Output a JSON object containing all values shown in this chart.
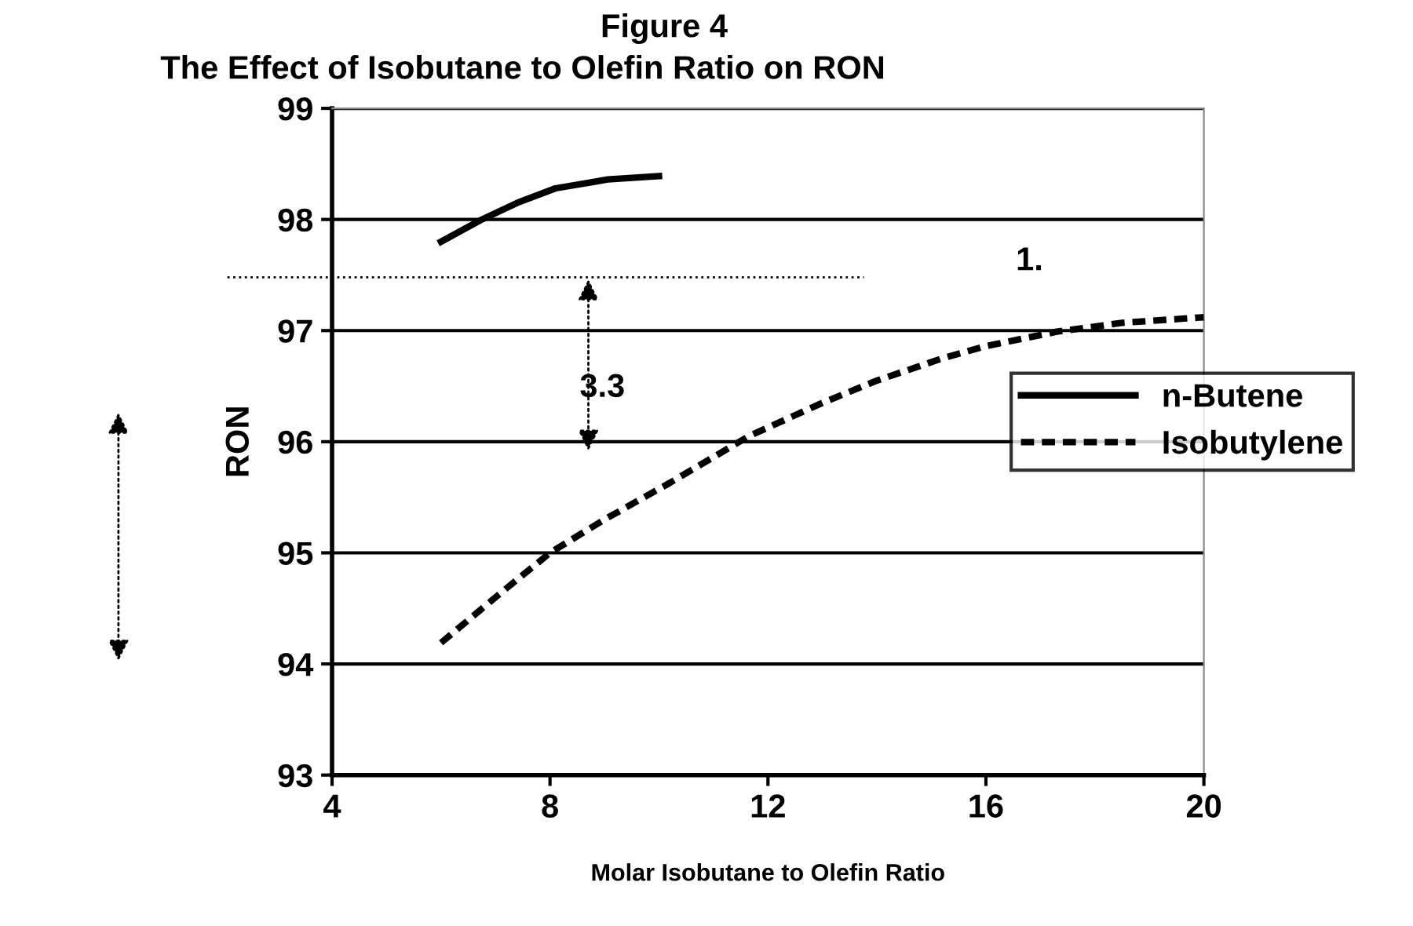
{
  "chart_data": {
    "type": "line",
    "title": "Figure 4",
    "subtitle": "The Effect of Isobutane to Olefin Ratio on RON",
    "xlabel": "Molar Isobutane to Olefin Ratio",
    "ylabel": "RON",
    "series": [
      {
        "name": "n-Butene",
        "color": "#000000",
        "line_style": "solid",
        "x": [
          6,
          6.75,
          7.4,
          8.1,
          9.06,
          10
        ],
        "values": [
          97.8,
          98.0,
          98.15,
          98.28,
          98.36,
          98.39
        ]
      },
      {
        "name": "Isobutylene",
        "color": "#000000",
        "line_style": "dashed",
        "x": [
          6,
          7,
          8,
          9,
          10.2,
          11.65,
          13,
          14,
          15.2,
          16,
          17.3,
          18.5,
          20
        ],
        "values": [
          94.19,
          94.6,
          95.0,
          95.3,
          95.63,
          96.05,
          96.35,
          96.55,
          96.75,
          96.86,
          96.99,
          97.07,
          97.12
        ]
      }
    ],
    "xlim": [
      4,
      20
    ],
    "xticks": [
      4,
      8,
      12,
      16,
      20
    ],
    "ylim": [
      93,
      99
    ],
    "yticks": [
      93,
      94,
      95,
      96,
      97,
      98,
      99
    ],
    "grid": "y",
    "legend": "right",
    "marker": "none",
    "ref_lines": [
      {
        "axis": "y",
        "value": 97.48,
        "color": "#000000",
        "line_style": "dotted"
      }
    ],
    "annotations": [
      "3.3",
      "1."
    ]
  }
}
